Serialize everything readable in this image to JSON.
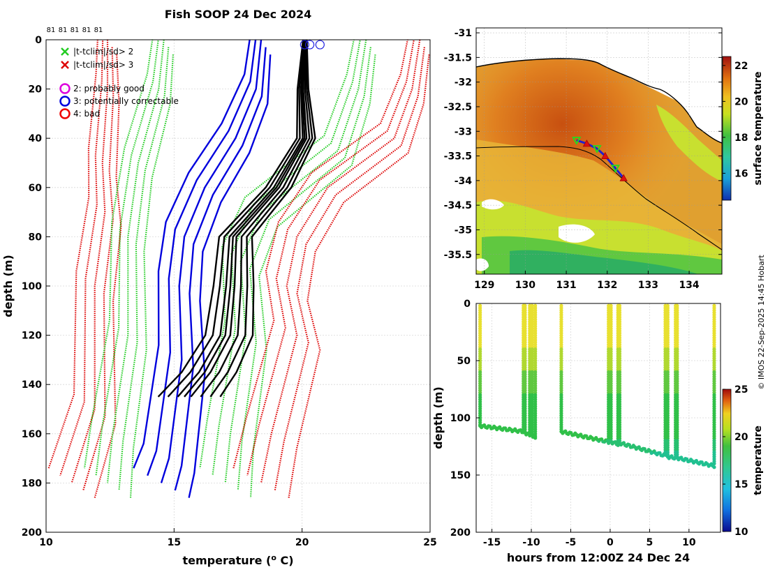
{
  "chart_data": [
    {
      "id": "profiles",
      "type": "line",
      "title": "Fish SOOP 24 Dec 2024",
      "xlabel": "temperature (",
      "xlabel_sup": "o",
      "xlabel_end": " C)",
      "ylabel": "depth (m)",
      "xlim": [
        10,
        25
      ],
      "ylim": [
        0,
        200
      ],
      "y_reversed": true,
      "xticks": [
        "10",
        "15",
        "20",
        "25"
      ],
      "yticks": [
        "0",
        "20",
        "40",
        "60",
        "80",
        "100",
        "120",
        "140",
        "160",
        "180",
        "200"
      ],
      "top_labels": [
        "81",
        "81",
        "81",
        "81",
        "81"
      ],
      "legend": {
        "markers": [
          {
            "symbol": "x",
            "color": "#22cc22",
            "label": "|t-tclim|/sd> 2"
          },
          {
            "symbol": "x",
            "color": "#dd0000",
            "label": "|t-tclim|/sd> 3"
          }
        ],
        "flags": [
          {
            "symbol": "o",
            "color": "#dd00dd",
            "label": "2: probably good"
          },
          {
            "symbol": "o",
            "color": "#0000dd",
            "label": "3: potentially correctable"
          },
          {
            "symbol": "o",
            "color": "#ee0000",
            "label": "4: bad"
          }
        ]
      },
      "series": [
        {
          "name": "climatology -3sd",
          "color": "#dd0000",
          "style": "dotted",
          "points": [
            [
              12.4,
              0
            ],
            [
              12.4,
              20
            ],
            [
              12.2,
              50
            ],
            [
              12.3,
              70
            ],
            [
              11.9,
              100
            ],
            [
              11.9,
              150
            ],
            [
              11.0,
              180
            ]
          ]
        },
        {
          "name": "climatology -2sd",
          "color": "#22cc22",
          "style": "dotted",
          "points": [
            [
              14.6,
              0
            ],
            [
              14.4,
              20
            ],
            [
              13.6,
              50
            ],
            [
              13.2,
              80
            ],
            [
              13.2,
              120
            ],
            [
              12.6,
              160
            ],
            [
              12.4,
              180
            ]
          ]
        },
        {
          "name": "climatology mean",
          "color": "#0000dd",
          "style": "solid",
          "points": [
            [
              18.4,
              0
            ],
            [
              18.2,
              20
            ],
            [
              17.4,
              40
            ],
            [
              16.2,
              60
            ],
            [
              15.4,
              80
            ],
            [
              15.2,
              100
            ],
            [
              15.3,
              130
            ],
            [
              14.8,
              170
            ],
            [
              14.5,
              180
            ]
          ]
        },
        {
          "name": "climatology +2sd",
          "color": "#22cc22",
          "style": "dotted",
          "points": [
            [
              22.5,
              0
            ],
            [
              22.2,
              20
            ],
            [
              21.4,
              45
            ],
            [
              18.4,
              70
            ],
            [
              17.6,
              90
            ],
            [
              17.8,
              120
            ],
            [
              17.2,
              160
            ],
            [
              17.0,
              180
            ]
          ]
        },
        {
          "name": "climatology +3sd",
          "color": "#dd0000",
          "style": "dotted",
          "points": [
            [
              24.6,
              0
            ],
            [
              24.3,
              20
            ],
            [
              23.6,
              40
            ],
            [
              21.0,
              60
            ],
            [
              19.8,
              80
            ],
            [
              19.4,
              100
            ],
            [
              19.8,
              120
            ],
            [
              18.8,
              160
            ],
            [
              18.4,
              180
            ]
          ]
        },
        {
          "name": "profiles",
          "color": "#000000",
          "style": "solid",
          "points": [
            [
              20.1,
              0
            ],
            [
              20.0,
              20
            ],
            [
              20.1,
              40
            ],
            [
              19.0,
              60
            ],
            [
              17.3,
              80
            ],
            [
              17.2,
              100
            ],
            [
              17.0,
              120
            ],
            [
              16.2,
              135
            ],
            [
              15.4,
              145
            ]
          ]
        }
      ],
      "flag_markers": [
        [
          20.1,
          2
        ],
        [
          20.3,
          2
        ],
        [
          20.7,
          2
        ]
      ]
    },
    {
      "id": "map",
      "type": "heatmap",
      "xlim": [
        128.8,
        134.8
      ],
      "ylim": [
        -35.9,
        -30.9
      ],
      "xticks": [
        "129",
        "130",
        "131",
        "132",
        "133",
        "134"
      ],
      "yticks": [
        "-31",
        "-31.5",
        "-32",
        "-32.5",
        "-33",
        "-33.5",
        "-34",
        "-34.5",
        "-35",
        "-35.5"
      ],
      "colorbar": {
        "label": "surface temperature",
        "range": [
          14.5,
          22.5
        ],
        "ticks": [
          "16",
          "18",
          "20",
          "22"
        ]
      },
      "track": [
        [
          131.25,
          -33.18
        ],
        [
          131.5,
          -33.25
        ],
        [
          131.75,
          -33.35
        ],
        [
          131.95,
          -33.5
        ],
        [
          132.2,
          -33.75
        ],
        [
          132.4,
          -33.95
        ]
      ]
    },
    {
      "id": "depth-time",
      "type": "scatter",
      "xlabel": "hours from 12:00Z 24 Dec 24",
      "ylabel": "depth (m)",
      "xlim": [
        -17,
        14
      ],
      "ylim": [
        0,
        200
      ],
      "y_reversed": true,
      "xticks": [
        "-15",
        "-10",
        "-5",
        "0",
        "5",
        "10"
      ],
      "yticks": [
        "0",
        "50",
        "100",
        "150",
        "200"
      ],
      "colorbar": {
        "label": "temperature",
        "range": [
          10,
          25
        ],
        "ticks": [
          "10",
          "15",
          "20",
          "25"
        ]
      },
      "profiles": [
        {
          "t_start": -16.5,
          "t_end": -11.0,
          "bottom_start": 107,
          "bottom_end": 112
        },
        {
          "t_start": -10.8,
          "t_end": -10.2,
          "bottom_start": 113,
          "bottom_end": 115
        },
        {
          "t_start": -9.9,
          "t_end": -9.5,
          "bottom_start": 115,
          "bottom_end": 117
        },
        {
          "t_start": -6.2,
          "t_end": -0.2,
          "bottom_start": 112,
          "bottom_end": 121
        },
        {
          "t_start": 0.1,
          "t_end": 1.0,
          "bottom_start": 121,
          "bottom_end": 123
        },
        {
          "t_start": 1.2,
          "t_end": 7.0,
          "bottom_start": 122,
          "bottom_end": 133
        },
        {
          "t_start": 7.3,
          "t_end": 8.3,
          "bottom_start": 134,
          "bottom_end": 135
        },
        {
          "t_start": 8.5,
          "t_end": 13.2,
          "bottom_start": 135,
          "bottom_end": 142
        }
      ]
    }
  ],
  "credit": "© IMOS 22-Sep-2025 14:45 Hobart"
}
